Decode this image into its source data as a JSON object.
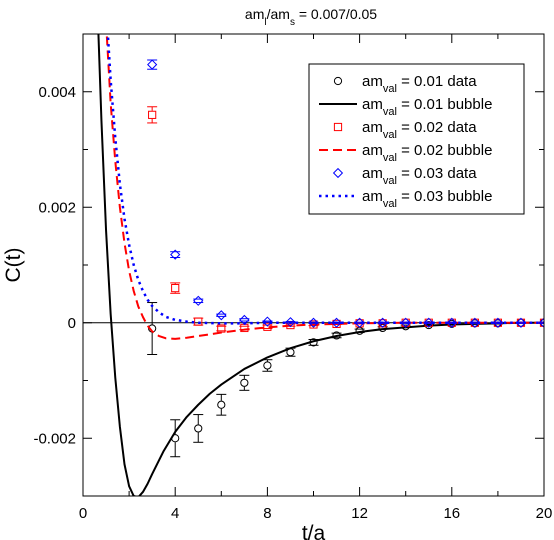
{
  "chart_data": {
    "type": "scatter",
    "title": {
      "base1": "am",
      "sub1": "l",
      "base2": "/am",
      "sub2": "s",
      "rest": " = 0.007/0.05"
    },
    "xlabel": "t/a",
    "ylabel": "C(t)",
    "xlim": [
      0,
      20
    ],
    "ylim": [
      -0.003,
      0.005
    ],
    "xticks": [
      0,
      4,
      8,
      12,
      16,
      20
    ],
    "xtick_labels": [
      "0",
      "4",
      "8",
      "12",
      "16",
      "20"
    ],
    "yticks": [
      -0.002,
      0,
      0.002,
      0.004
    ],
    "ytick_labels": [
      "-0.002",
      "0",
      "0.002",
      "0.004"
    ],
    "zero_line": true,
    "grid": false,
    "legend_position": "top-right",
    "series": [
      {
        "name": "am_val = 0.01 data",
        "legend_base": "am",
        "legend_sub": "val",
        "legend_rest": " = 0.01 data",
        "kind": "points",
        "marker": "circle",
        "color": "#000000",
        "points": [
          {
            "x": 3,
            "y": -0.0001,
            "err": 0.00045
          },
          {
            "x": 4,
            "y": -0.002,
            "err": 0.00032
          },
          {
            "x": 5,
            "y": -0.00183,
            "err": 0.00024
          },
          {
            "x": 6,
            "y": -0.00142,
            "err": 0.00018
          },
          {
            "x": 7,
            "y": -0.00104,
            "err": 0.00013
          },
          {
            "x": 8,
            "y": -0.00074,
            "err": 0.0001
          },
          {
            "x": 9,
            "y": -0.00051,
            "err": 7e-05
          },
          {
            "x": 10,
            "y": -0.00034,
            "err": 5e-05
          },
          {
            "x": 11,
            "y": -0.00022,
            "err": 4e-05
          },
          {
            "x": 12,
            "y": -0.00014,
            "err": 3e-05
          },
          {
            "x": 13,
            "y": -9e-05,
            "err": 2e-05
          },
          {
            "x": 14,
            "y": -6e-05,
            "err": 2e-05
          },
          {
            "x": 15,
            "y": -4e-05,
            "err": 1e-05
          },
          {
            "x": 16,
            "y": -2e-05,
            "err": 1e-05
          },
          {
            "x": 17,
            "y": -1e-05,
            "err": 1e-05
          },
          {
            "x": 18,
            "y": -1e-05,
            "err": 1e-05
          },
          {
            "x": 19,
            "y": 0.0,
            "err": 1e-05
          },
          {
            "x": 20,
            "y": 0.0,
            "err": 1e-05
          }
        ]
      },
      {
        "name": "am_val = 0.01 bubble",
        "legend_base": "am",
        "legend_sub": "val",
        "legend_rest": " = 0.01 bubble",
        "kind": "line",
        "dash": "solid",
        "color": "#000000",
        "width": 2,
        "points": [
          {
            "x": 0.6,
            "y": 0.0058
          },
          {
            "x": 0.8,
            "y": 0.0035
          },
          {
            "x": 1.0,
            "y": 0.0016
          },
          {
            "x": 1.2,
            "y": 0.00015
          },
          {
            "x": 1.4,
            "y": -0.00095
          },
          {
            "x": 1.6,
            "y": -0.0018
          },
          {
            "x": 1.8,
            "y": -0.00245
          },
          {
            "x": 2.0,
            "y": -0.00283
          },
          {
            "x": 2.2,
            "y": -0.003
          },
          {
            "x": 2.4,
            "y": -0.00302
          },
          {
            "x": 2.6,
            "y": -0.00293
          },
          {
            "x": 2.8,
            "y": -0.00279
          },
          {
            "x": 3.0,
            "y": -0.00262
          },
          {
            "x": 3.5,
            "y": -0.00222
          },
          {
            "x": 4.0,
            "y": -0.00189
          },
          {
            "x": 4.5,
            "y": -0.00163
          },
          {
            "x": 5.0,
            "y": -0.00142
          },
          {
            "x": 5.5,
            "y": -0.00123
          },
          {
            "x": 6.0,
            "y": -0.00107
          },
          {
            "x": 7.0,
            "y": -0.0008
          },
          {
            "x": 8.0,
            "y": -0.0006
          },
          {
            "x": 9.0,
            "y": -0.00044
          },
          {
            "x": 10.0,
            "y": -0.00032
          },
          {
            "x": 11.0,
            "y": -0.00023
          },
          {
            "x": 12.0,
            "y": -0.00016
          },
          {
            "x": 13.0,
            "y": -0.00011
          },
          {
            "x": 14.0,
            "y": -8e-05
          },
          {
            "x": 15.0,
            "y": -5e-05
          },
          {
            "x": 16.0,
            "y": -3e-05
          },
          {
            "x": 17.0,
            "y": -2e-05
          },
          {
            "x": 18.0,
            "y": -1e-05
          },
          {
            "x": 19.0,
            "y": 0.0
          },
          {
            "x": 20.0,
            "y": 0.0
          }
        ]
      },
      {
        "name": "am_val = 0.02 data",
        "legend_base": "am",
        "legend_sub": "val",
        "legend_rest": " = 0.02 data",
        "kind": "points",
        "marker": "square",
        "color": "#ff0000",
        "points": [
          {
            "x": 3,
            "y": 0.0036,
            "err": 0.00014
          },
          {
            "x": 4,
            "y": 0.0006,
            "err": 9e-05
          },
          {
            "x": 5,
            "y": 2e-05,
            "err": 6e-05
          },
          {
            "x": 6,
            "y": -0.0001,
            "err": 4e-05
          },
          {
            "x": 7,
            "y": -9e-05,
            "err": 3e-05
          },
          {
            "x": 8,
            "y": -7e-05,
            "err": 3e-05
          },
          {
            "x": 9,
            "y": -4e-05,
            "err": 2e-05
          },
          {
            "x": 10,
            "y": -3e-05,
            "err": 2e-05
          },
          {
            "x": 11,
            "y": -2e-05,
            "err": 1e-05
          },
          {
            "x": 12,
            "y": -1e-05,
            "err": 1e-05
          },
          {
            "x": 13,
            "y": -1e-05,
            "err": 1e-05
          },
          {
            "x": 14,
            "y": 0.0,
            "err": 1e-05
          },
          {
            "x": 15,
            "y": 0.0,
            "err": 1e-05
          },
          {
            "x": 16,
            "y": 0.0,
            "err": 1e-05
          },
          {
            "x": 17,
            "y": 0.0,
            "err": 1e-05
          },
          {
            "x": 18,
            "y": 0.0,
            "err": 1e-05
          },
          {
            "x": 19,
            "y": 0.0,
            "err": 1e-05
          },
          {
            "x": 20,
            "y": 0.0,
            "err": 1e-05
          }
        ]
      },
      {
        "name": "am_val = 0.02 bubble",
        "legend_base": "am",
        "legend_sub": "val",
        "legend_rest": " = 0.02 bubble",
        "kind": "line",
        "dash": "dashed",
        "color": "#ff0000",
        "width": 2,
        "points": [
          {
            "x": 1.0,
            "y": 0.0052
          },
          {
            "x": 1.2,
            "y": 0.0038
          },
          {
            "x": 1.4,
            "y": 0.0028
          },
          {
            "x": 1.6,
            "y": 0.002
          },
          {
            "x": 1.8,
            "y": 0.00138
          },
          {
            "x": 2.0,
            "y": 0.0009
          },
          {
            "x": 2.2,
            "y": 0.00055
          },
          {
            "x": 2.4,
            "y": 0.00028
          },
          {
            "x": 2.6,
            "y": 0.0001
          },
          {
            "x": 2.8,
            "y": -5e-05
          },
          {
            "x": 3.0,
            "y": -0.00015
          },
          {
            "x": 3.3,
            "y": -0.00023
          },
          {
            "x": 3.6,
            "y": -0.00027
          },
          {
            "x": 4.0,
            "y": -0.00028
          },
          {
            "x": 4.5,
            "y": -0.00026
          },
          {
            "x": 5.0,
            "y": -0.00023
          },
          {
            "x": 6.0,
            "y": -0.00017
          },
          {
            "x": 7.0,
            "y": -0.00012
          },
          {
            "x": 8.0,
            "y": -8e-05
          },
          {
            "x": 9.0,
            "y": -5e-05
          },
          {
            "x": 10.0,
            "y": -3e-05
          },
          {
            "x": 12.0,
            "y": -1e-05
          },
          {
            "x": 14.0,
            "y": 0.0
          },
          {
            "x": 20.0,
            "y": 0.0
          }
        ]
      },
      {
        "name": "am_val = 0.03 data",
        "legend_base": "am",
        "legend_sub": "val",
        "legend_rest": " = 0.03 data",
        "kind": "points",
        "marker": "diamond",
        "color": "#0000ff",
        "points": [
          {
            "x": 3,
            "y": 0.00447,
            "err": 8e-05
          },
          {
            "x": 4,
            "y": 0.00118,
            "err": 5e-05
          },
          {
            "x": 5,
            "y": 0.00038,
            "err": 3e-05
          },
          {
            "x": 6,
            "y": 0.00013,
            "err": 2e-05
          },
          {
            "x": 7,
            "y": 5e-05,
            "err": 2e-05
          },
          {
            "x": 8,
            "y": 2e-05,
            "err": 1e-05
          },
          {
            "x": 9,
            "y": 1e-05,
            "err": 1e-05
          },
          {
            "x": 10,
            "y": 0.0,
            "err": 1e-05
          },
          {
            "x": 11,
            "y": 0.0,
            "err": 1e-05
          },
          {
            "x": 12,
            "y": 0.0,
            "err": 1e-05
          },
          {
            "x": 13,
            "y": 0.0,
            "err": 1e-05
          },
          {
            "x": 14,
            "y": 0.0,
            "err": 1e-05
          },
          {
            "x": 15,
            "y": 0.0,
            "err": 1e-05
          },
          {
            "x": 16,
            "y": 0.0,
            "err": 1e-05
          },
          {
            "x": 17,
            "y": 0.0,
            "err": 1e-05
          },
          {
            "x": 18,
            "y": 0.0,
            "err": 1e-05
          },
          {
            "x": 19,
            "y": 0.0,
            "err": 1e-05
          },
          {
            "x": 20,
            "y": 0.0,
            "err": 1e-05
          }
        ]
      },
      {
        "name": "am_val = 0.03 bubble",
        "legend_base": "am",
        "legend_sub": "val",
        "legend_rest": " = 0.03 bubble",
        "kind": "line",
        "dash": "dotted",
        "color": "#0000ff",
        "width": 2.5,
        "points": [
          {
            "x": 1.0,
            "y": 0.0055
          },
          {
            "x": 1.2,
            "y": 0.0042
          },
          {
            "x": 1.4,
            "y": 0.0032
          },
          {
            "x": 1.6,
            "y": 0.0024
          },
          {
            "x": 1.8,
            "y": 0.0018
          },
          {
            "x": 2.0,
            "y": 0.00135
          },
          {
            "x": 2.2,
            "y": 0.001
          },
          {
            "x": 2.4,
            "y": 0.00074
          },
          {
            "x": 2.6,
            "y": 0.00055
          },
          {
            "x": 2.8,
            "y": 0.0004
          },
          {
            "x": 3.0,
            "y": 0.00029
          },
          {
            "x": 3.3,
            "y": 0.00018
          },
          {
            "x": 3.6,
            "y": 0.0001
          },
          {
            "x": 4.0,
            "y": 5e-05
          },
          {
            "x": 4.5,
            "y": 2e-05
          },
          {
            "x": 5.0,
            "y": 0.0
          },
          {
            "x": 6.0,
            "y": -1e-05
          },
          {
            "x": 7.0,
            "y": -1e-05
          },
          {
            "x": 8.0,
            "y": 0.0
          },
          {
            "x": 20.0,
            "y": 0.0
          }
        ]
      }
    ]
  }
}
